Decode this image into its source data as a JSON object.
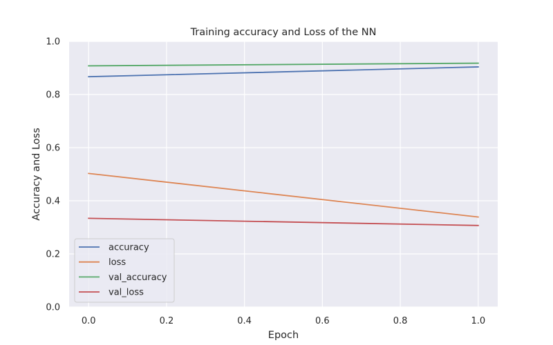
{
  "chart_data": {
    "type": "line",
    "title": "Training accuracy and Loss of the NN",
    "xlabel": "Epoch",
    "ylabel": "Accuracy and Loss",
    "x": [
      0,
      1
    ],
    "xlim": [
      -0.05,
      1.05
    ],
    "ylim": [
      0.0,
      1.0
    ],
    "xticks": [
      "0.0",
      "0.2",
      "0.4",
      "0.6",
      "0.8",
      "1.0"
    ],
    "yticks": [
      "0.0",
      "0.2",
      "0.4",
      "0.6",
      "0.8",
      "1.0"
    ],
    "grid": true,
    "legend_position": "lower-left",
    "series": [
      {
        "name": "accuracy",
        "values": [
          0.867,
          0.904
        ],
        "color": "#4c72b0"
      },
      {
        "name": "loss",
        "values": [
          0.503,
          0.339
        ],
        "color": "#dd8452"
      },
      {
        "name": "val_accuracy",
        "values": [
          0.908,
          0.918
        ],
        "color": "#55a868"
      },
      {
        "name": "val_loss",
        "values": [
          0.334,
          0.307
        ],
        "color": "#c44e52"
      }
    ]
  }
}
